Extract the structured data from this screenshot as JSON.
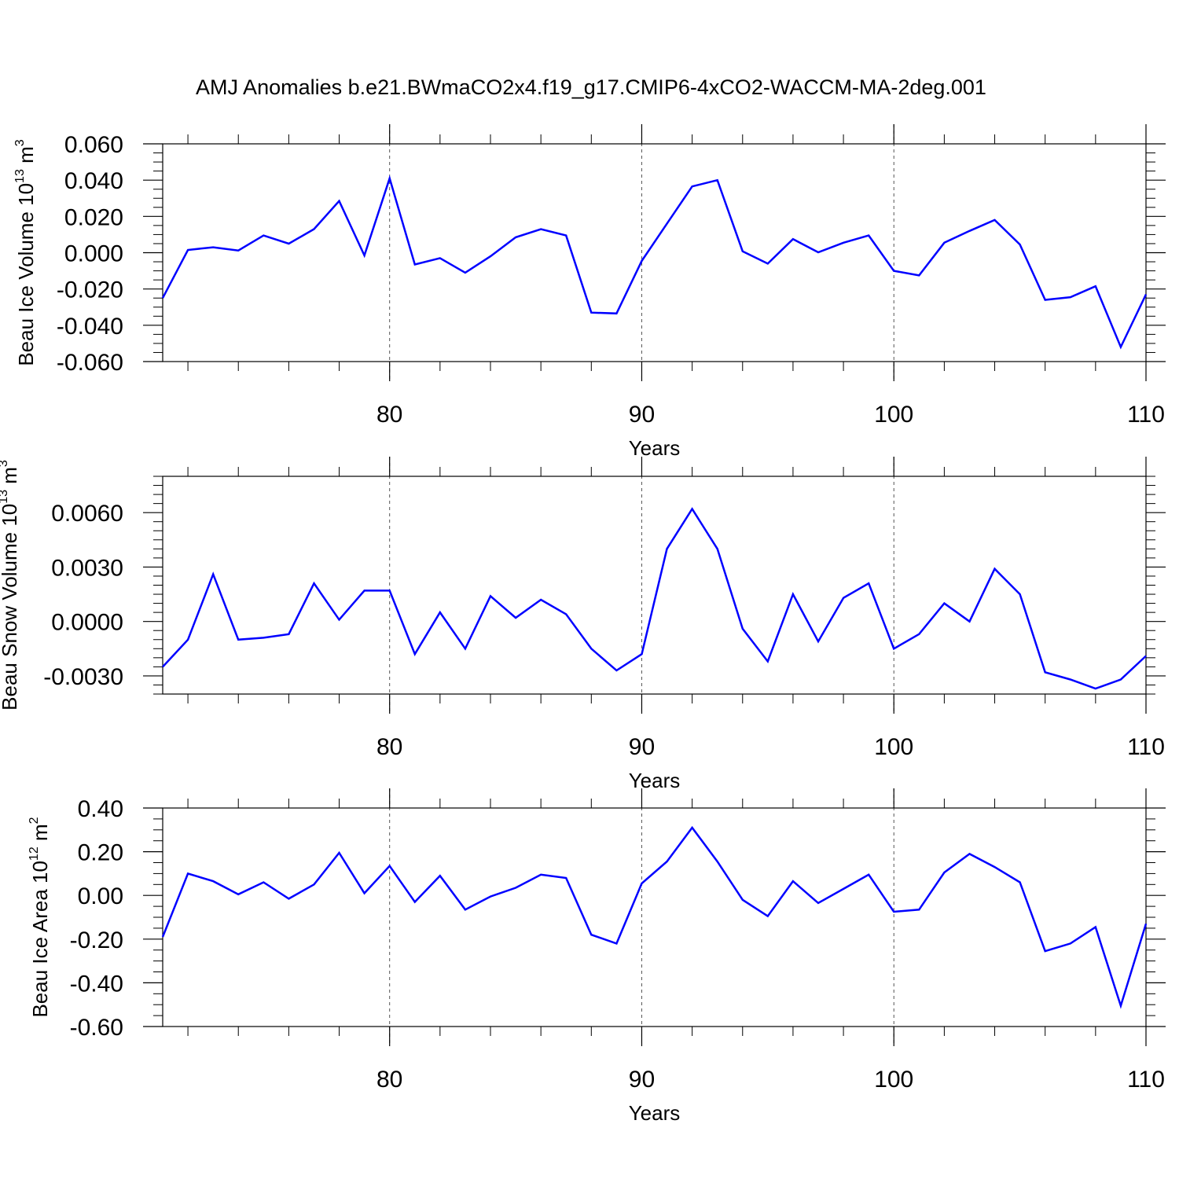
{
  "title": "AMJ Anomalies b.e21.BWmaCO2x4.f19_g17.CMIP6-4xCO2-WACCM-MA-2deg.001",
  "colors": {
    "line": "#0000ff",
    "axis": "#000000",
    "grid": "#555555"
  },
  "chart_data": [
    {
      "type": "line",
      "ylabel": {
        "text": "Beau Ice Volume 10",
        "sup": "13",
        "unit": " m",
        "unit_sup": "3"
      },
      "xlabel": "Years",
      "xlim": [
        71,
        110
      ],
      "ylim": [
        -0.06,
        0.06
      ],
      "xticks": [
        80,
        90,
        100,
        110
      ],
      "xtick_labels": [
        "80",
        "90",
        "100",
        "110"
      ],
      "yticks": [
        -0.06,
        -0.04,
        -0.02,
        0.0,
        0.02,
        0.04,
        0.06
      ],
      "ytick_labels": [
        "-0.060",
        "-0.040",
        "-0.020",
        "0.000",
        "0.020",
        "0.040",
        "0.060"
      ],
      "grid": "dashed vertical at major x ticks",
      "x": [
        71,
        72,
        73,
        74,
        75,
        76,
        77,
        78,
        79,
        80,
        81,
        82,
        83,
        84,
        85,
        86,
        87,
        88,
        89,
        90,
        91,
        92,
        93,
        94,
        95,
        96,
        97,
        98,
        99,
        100,
        101,
        102,
        103,
        104,
        105,
        106,
        107,
        108,
        109,
        110
      ],
      "y": [
        -0.025,
        0.0015,
        0.003,
        0.0012,
        0.0095,
        0.005,
        0.013,
        0.0285,
        -0.0015,
        0.041,
        -0.0065,
        -0.003,
        -0.011,
        -0.002,
        0.0085,
        0.013,
        0.0095,
        -0.033,
        -0.0335,
        -0.0045,
        0.016,
        0.0365,
        0.04,
        0.0008,
        -0.006,
        0.0075,
        0.0002,
        0.0055,
        0.0095,
        -0.01,
        -0.0125,
        0.0055,
        0.012,
        0.018,
        0.0045,
        -0.026,
        -0.0245,
        -0.0185,
        -0.052,
        -0.023
      ]
    },
    {
      "type": "line",
      "ylabel": {
        "text": "Beau Snow Volume 10",
        "sup": "13",
        "unit": " m",
        "unit_sup": "3"
      },
      "xlabel": "Years",
      "xlim": [
        71,
        110
      ],
      "ylim": [
        -0.004,
        0.008
      ],
      "xticks": [
        80,
        90,
        100,
        110
      ],
      "xtick_labels": [
        "80",
        "90",
        "100",
        "110"
      ],
      "yticks": [
        -0.003,
        0.0,
        0.003,
        0.006
      ],
      "ytick_labels": [
        "-0.0030",
        "0.0000",
        "0.0030",
        "0.0060"
      ],
      "grid": "dashed vertical at major x ticks",
      "x": [
        71,
        72,
        73,
        74,
        75,
        76,
        77,
        78,
        79,
        80,
        81,
        82,
        83,
        84,
        85,
        86,
        87,
        88,
        89,
        90,
        91,
        92,
        93,
        94,
        95,
        96,
        97,
        98,
        99,
        100,
        101,
        102,
        103,
        104,
        105,
        106,
        107,
        108,
        109,
        110
      ],
      "y": [
        -0.0025,
        -0.001,
        0.0026,
        -0.001,
        -0.0009,
        -0.0007,
        0.0021,
        0.0001,
        0.0017,
        0.0017,
        -0.0018,
        0.0005,
        -0.0015,
        0.0014,
        0.0002,
        0.0012,
        0.0004,
        -0.0015,
        -0.0027,
        -0.0018,
        0.004,
        0.0062,
        0.004,
        -0.0004,
        -0.0022,
        0.0015,
        -0.0011,
        0.0013,
        0.0021,
        -0.0015,
        -0.0007,
        0.001,
        0.0,
        0.0029,
        0.0015,
        -0.0028,
        -0.0032,
        -0.0037,
        -0.0032,
        -0.0019
      ]
    },
    {
      "type": "line",
      "ylabel": {
        "text": "Beau Ice Area 10",
        "sup": "12",
        "unit": " m",
        "unit_sup": "2"
      },
      "xlabel": "Years",
      "xlim": [
        71,
        110
      ],
      "ylim": [
        -0.6,
        0.4
      ],
      "xticks": [
        80,
        90,
        100,
        110
      ],
      "xtick_labels": [
        "80",
        "90",
        "100",
        "110"
      ],
      "yticks": [
        -0.6,
        -0.4,
        -0.2,
        0.0,
        0.2,
        0.4
      ],
      "ytick_labels": [
        "-0.60",
        "-0.40",
        "-0.20",
        "0.00",
        "0.20",
        "0.40"
      ],
      "grid": "dashed vertical at major x ticks",
      "x": [
        71,
        72,
        73,
        74,
        75,
        76,
        77,
        78,
        79,
        80,
        81,
        82,
        83,
        84,
        85,
        86,
        87,
        88,
        89,
        90,
        91,
        92,
        93,
        94,
        95,
        96,
        97,
        98,
        99,
        100,
        101,
        102,
        103,
        104,
        105,
        106,
        107,
        108,
        109,
        110
      ],
      "y": [
        -0.19,
        0.1,
        0.065,
        0.005,
        0.06,
        -0.015,
        0.05,
        0.195,
        0.01,
        0.135,
        -0.03,
        0.09,
        -0.065,
        -0.005,
        0.035,
        0.095,
        0.08,
        -0.18,
        -0.22,
        0.055,
        0.155,
        0.31,
        0.155,
        -0.02,
        -0.095,
        0.065,
        -0.035,
        0.03,
        0.095,
        -0.075,
        -0.065,
        0.105,
        0.19,
        0.13,
        0.06,
        -0.255,
        -0.22,
        -0.145,
        -0.505,
        -0.13
      ]
    }
  ]
}
